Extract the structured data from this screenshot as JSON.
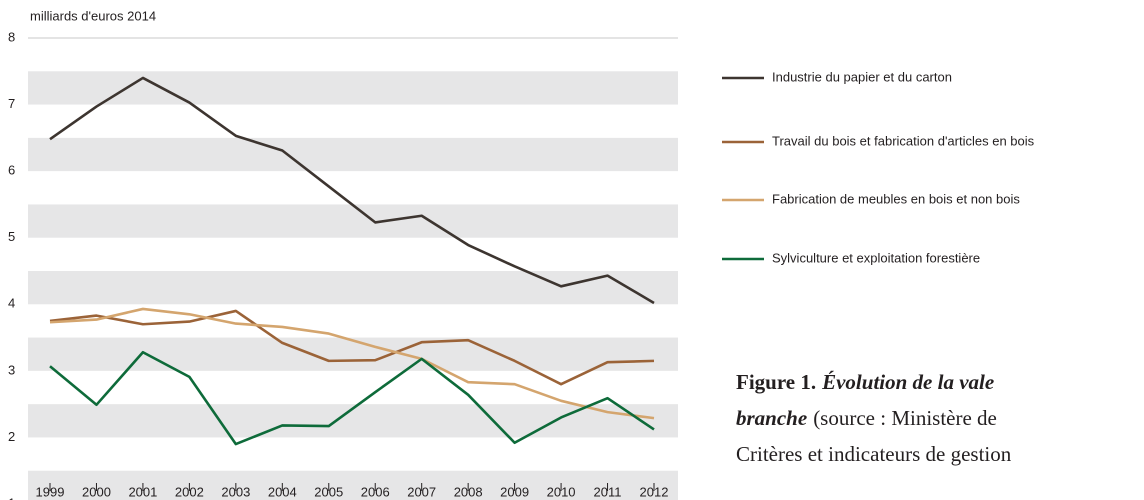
{
  "chart_data": {
    "type": "line",
    "ylabel": "milliards d'euros 2014",
    "categories": [
      "1999",
      "2000",
      "2001",
      "2002",
      "2003",
      "2004",
      "2005",
      "2006",
      "2007",
      "2008",
      "2009",
      "2010",
      "2011",
      "2012"
    ],
    "ylim": [
      1,
      8
    ],
    "yticks": [
      1,
      2,
      3,
      4,
      5,
      6,
      7,
      8
    ],
    "grid": "bands",
    "legend": "right",
    "series": [
      {
        "name": "Industrie du papier et du carton",
        "color": "#3d3530",
        "values": [
          6.48,
          6.97,
          7.4,
          7.03,
          6.53,
          6.31,
          5.77,
          5.23,
          5.33,
          4.89,
          4.57,
          4.27,
          4.43,
          4.02
        ]
      },
      {
        "name": "Travail du bois et fabrication d'articles en bois",
        "color": "#9b6338",
        "values": [
          3.75,
          3.83,
          3.7,
          3.74,
          3.9,
          3.42,
          3.15,
          3.16,
          3.43,
          3.46,
          3.15,
          2.8,
          3.13,
          3.15
        ]
      },
      {
        "name": "Fabrication de meubles en bois et non bois",
        "color": "#d4a56e",
        "values": [
          3.73,
          3.77,
          3.93,
          3.85,
          3.71,
          3.66,
          3.56,
          3.36,
          3.18,
          2.83,
          2.8,
          2.55,
          2.38,
          2.29
        ]
      },
      {
        "name": "Sylviculture et exploitation forestière",
        "color": "#0e6b3a",
        "values": [
          3.07,
          2.49,
          3.28,
          2.91,
          1.9,
          2.18,
          2.17,
          2.68,
          3.18,
          2.64,
          1.92,
          2.3,
          2.59,
          2.12
        ]
      }
    ]
  },
  "caption": {
    "lines": [
      [
        {
          "text": "Figure 1.",
          "style": "bold"
        },
        {
          "text": "Évolution de la vale",
          "style": "bolditalic"
        }
      ],
      [
        {
          "text": "branche",
          "style": "bolditalic"
        },
        {
          "text": "(source : Ministère de",
          "style": "normal"
        }
      ],
      [
        {
          "text": "Critères et indicateurs de gestion",
          "style": "normal"
        }
      ]
    ]
  }
}
